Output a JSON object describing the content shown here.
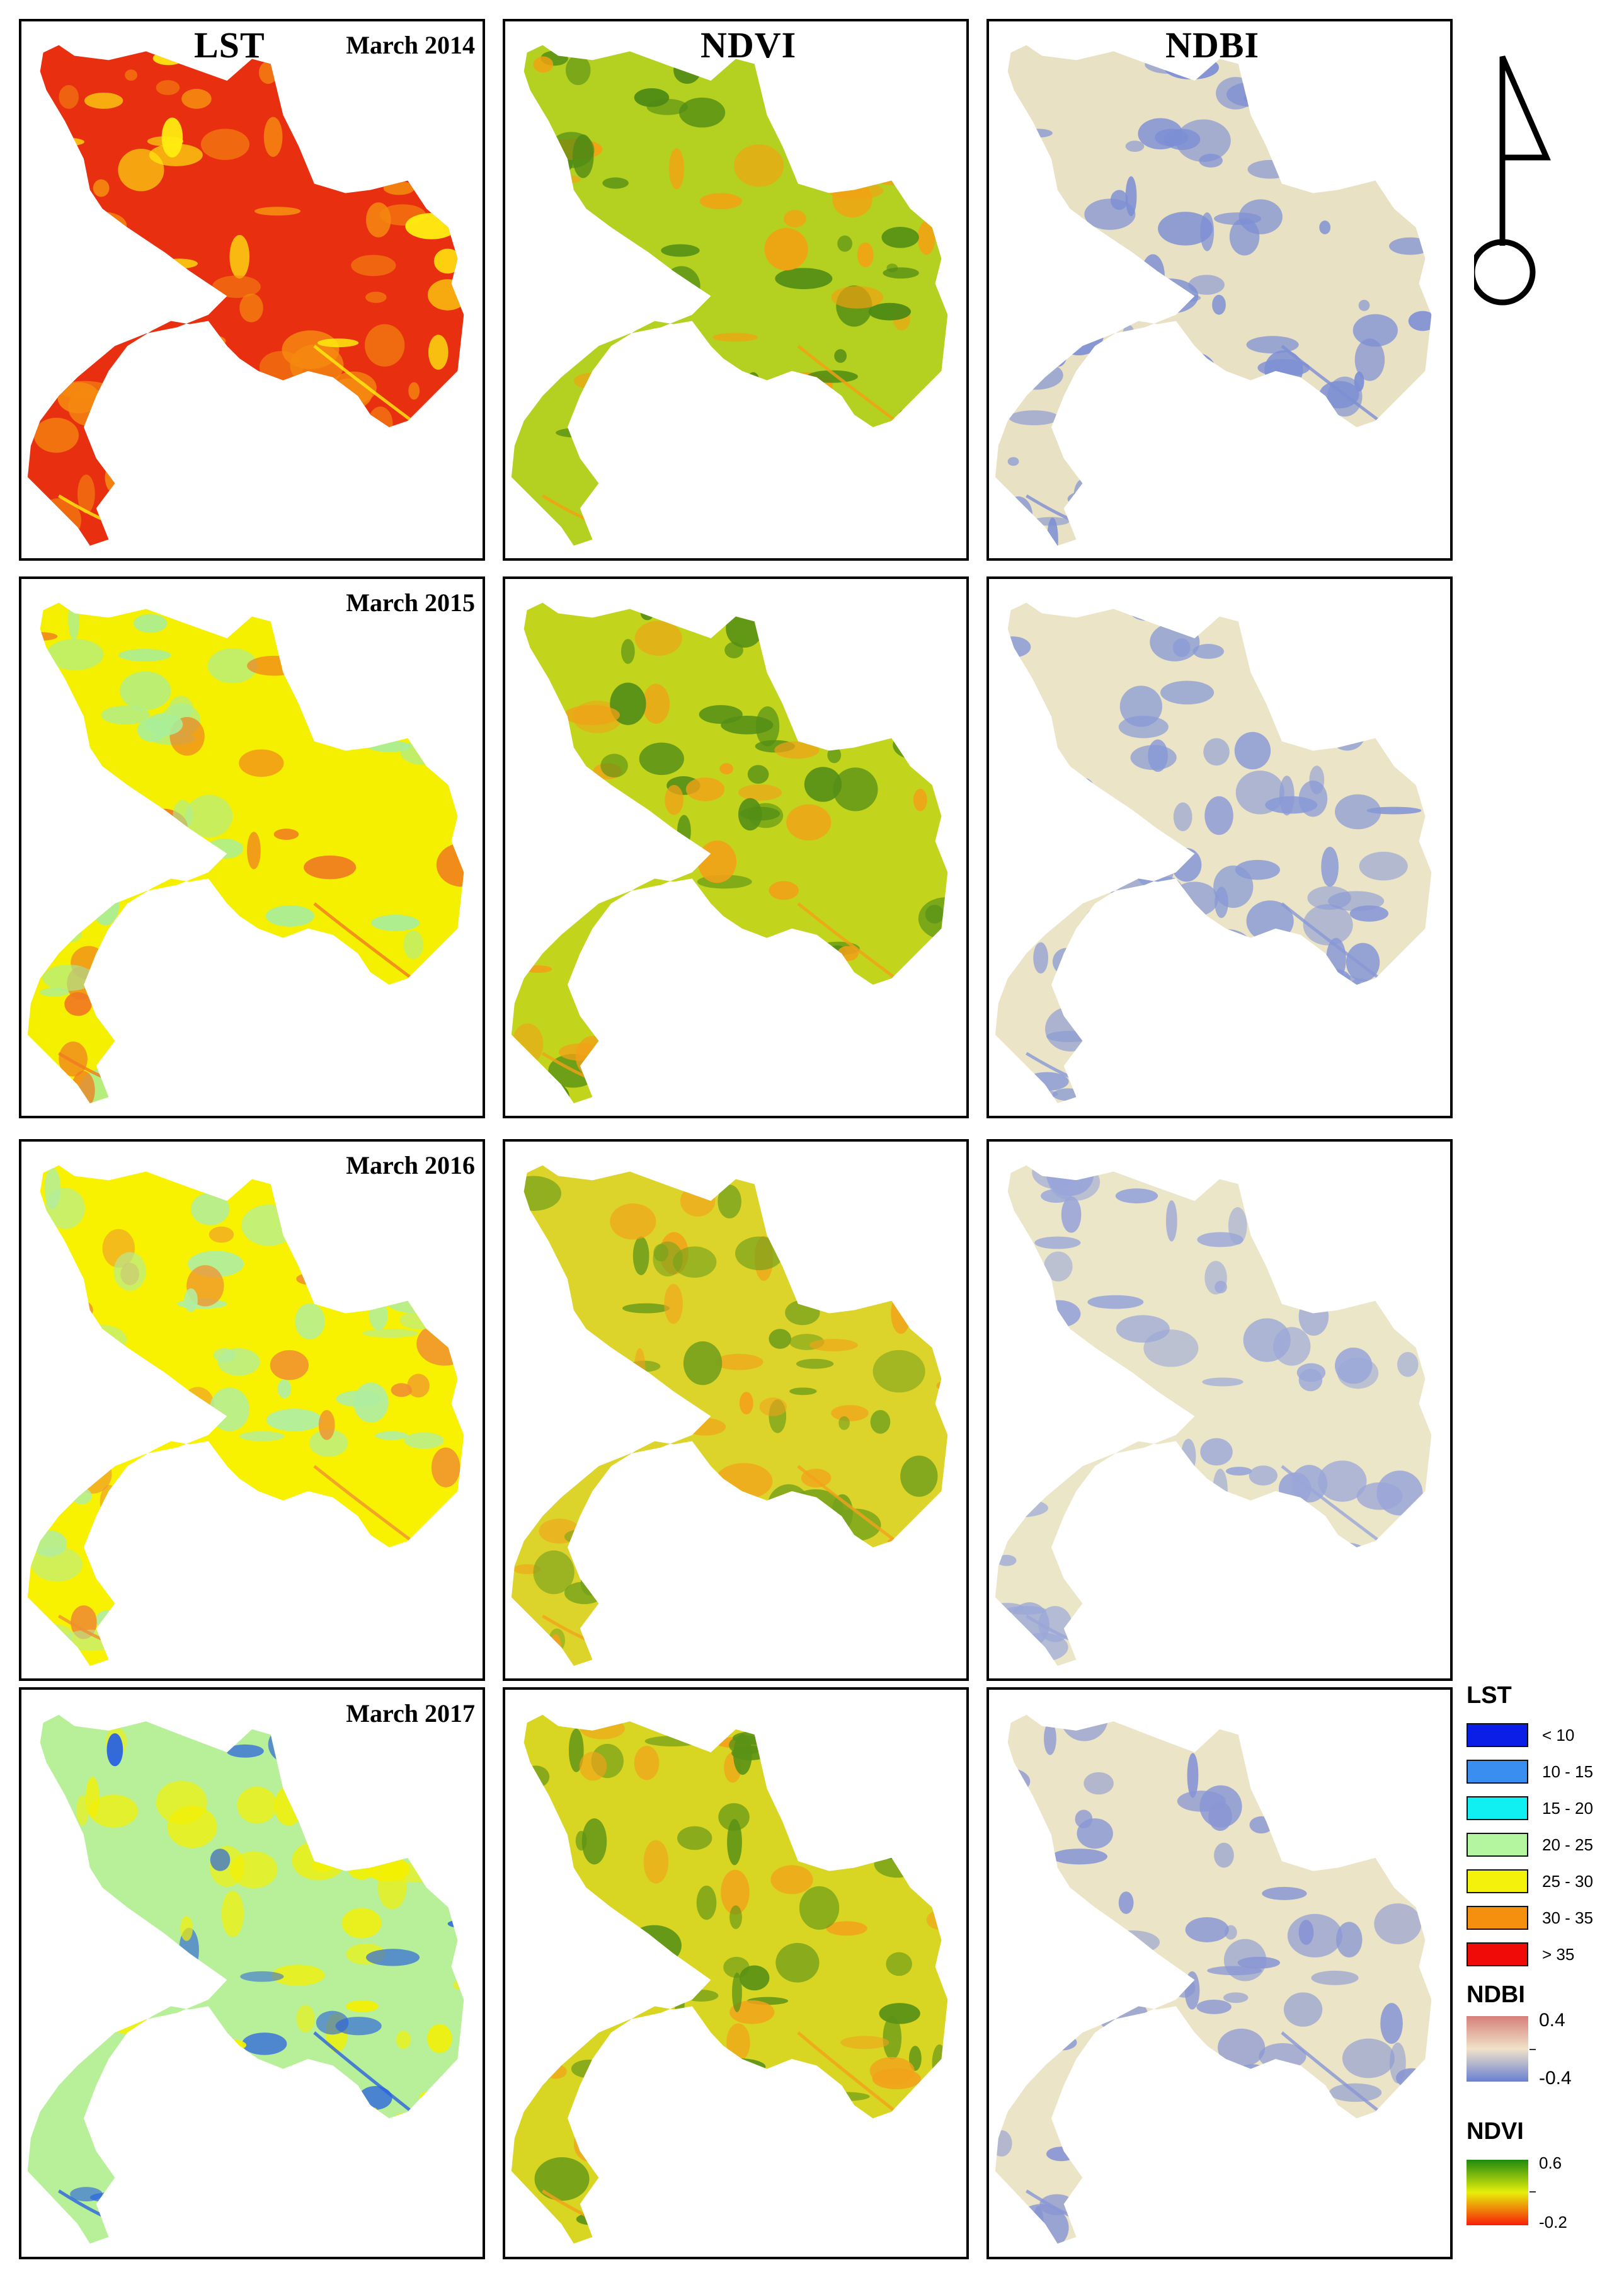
{
  "columns": [
    {
      "key": "lst",
      "title": "LST"
    },
    {
      "key": "ndvi",
      "title": "NDVI"
    },
    {
      "key": "ndbi",
      "title": "NDBI"
    }
  ],
  "rows": [
    {
      "year": "March 2014",
      "lst_fill": "#e83010",
      "lst_patch": "#f58a10",
      "lst_patch2": "#ffef10",
      "ndvi_fill": "#b4d020",
      "ndvi_patch": "#4e8a14",
      "ndvi_patch2": "#f5a012",
      "ndbi_fill": "#e8e1c4",
      "ndbi_patch": "#7d8fd4"
    },
    {
      "year": "March 2015",
      "lst_fill": "#f4f000",
      "lst_patch": "#a8ee9a",
      "lst_patch2": "#f07a20",
      "ndvi_fill": "#c2d51c",
      "ndvi_patch": "#538e16",
      "ndvi_patch2": "#f2a018",
      "ndbi_fill": "#ebe4c6",
      "ndbi_patch": "#8798d6"
    },
    {
      "year": "March 2016",
      "lst_fill": "#f8f200",
      "lst_patch": "#b0eea0",
      "lst_patch2": "#f09030",
      "ndvi_fill": "#dcd42a",
      "ndvi_patch": "#76a21c",
      "ndvi_patch2": "#f2a21a",
      "ndbi_fill": "#ece6c9",
      "ndbi_patch": "#9aa6d8"
    },
    {
      "year": "March 2017",
      "lst_fill": "#b7f098",
      "lst_patch": "#f4f000",
      "lst_patch2": "#2a62e0",
      "ndvi_fill": "#d8d622",
      "ndvi_patch": "#5a9216",
      "ndvi_patch2": "#f2a21a",
      "ndbi_fill": "#ebe4c6",
      "ndbi_patch": "#8896d4"
    }
  ],
  "legend": {
    "lst_title": "LST",
    "lst_items": [
      {
        "label": "< 10",
        "color": "#0a1ee8"
      },
      {
        "label": "10 - 15",
        "color": "#3a8ef0"
      },
      {
        "label": "15 - 20",
        "color": "#10f0f2"
      },
      {
        "label": "20 - 25",
        "color": "#b4f6a0"
      },
      {
        "label": "25 - 30",
        "color": "#f4f20a"
      },
      {
        "label": "30 - 35",
        "color": "#f5900e"
      },
      {
        "label": "> 35",
        "color": "#f00a08"
      }
    ],
    "ndbi_title": "NDBI",
    "ndbi_max": "0.4",
    "ndbi_min": "-0.4",
    "ndvi_title": "NDVI",
    "ndvi_max": "0.6",
    "ndvi_min": "-0.2"
  },
  "north_arrow": "north-arrow-icon"
}
